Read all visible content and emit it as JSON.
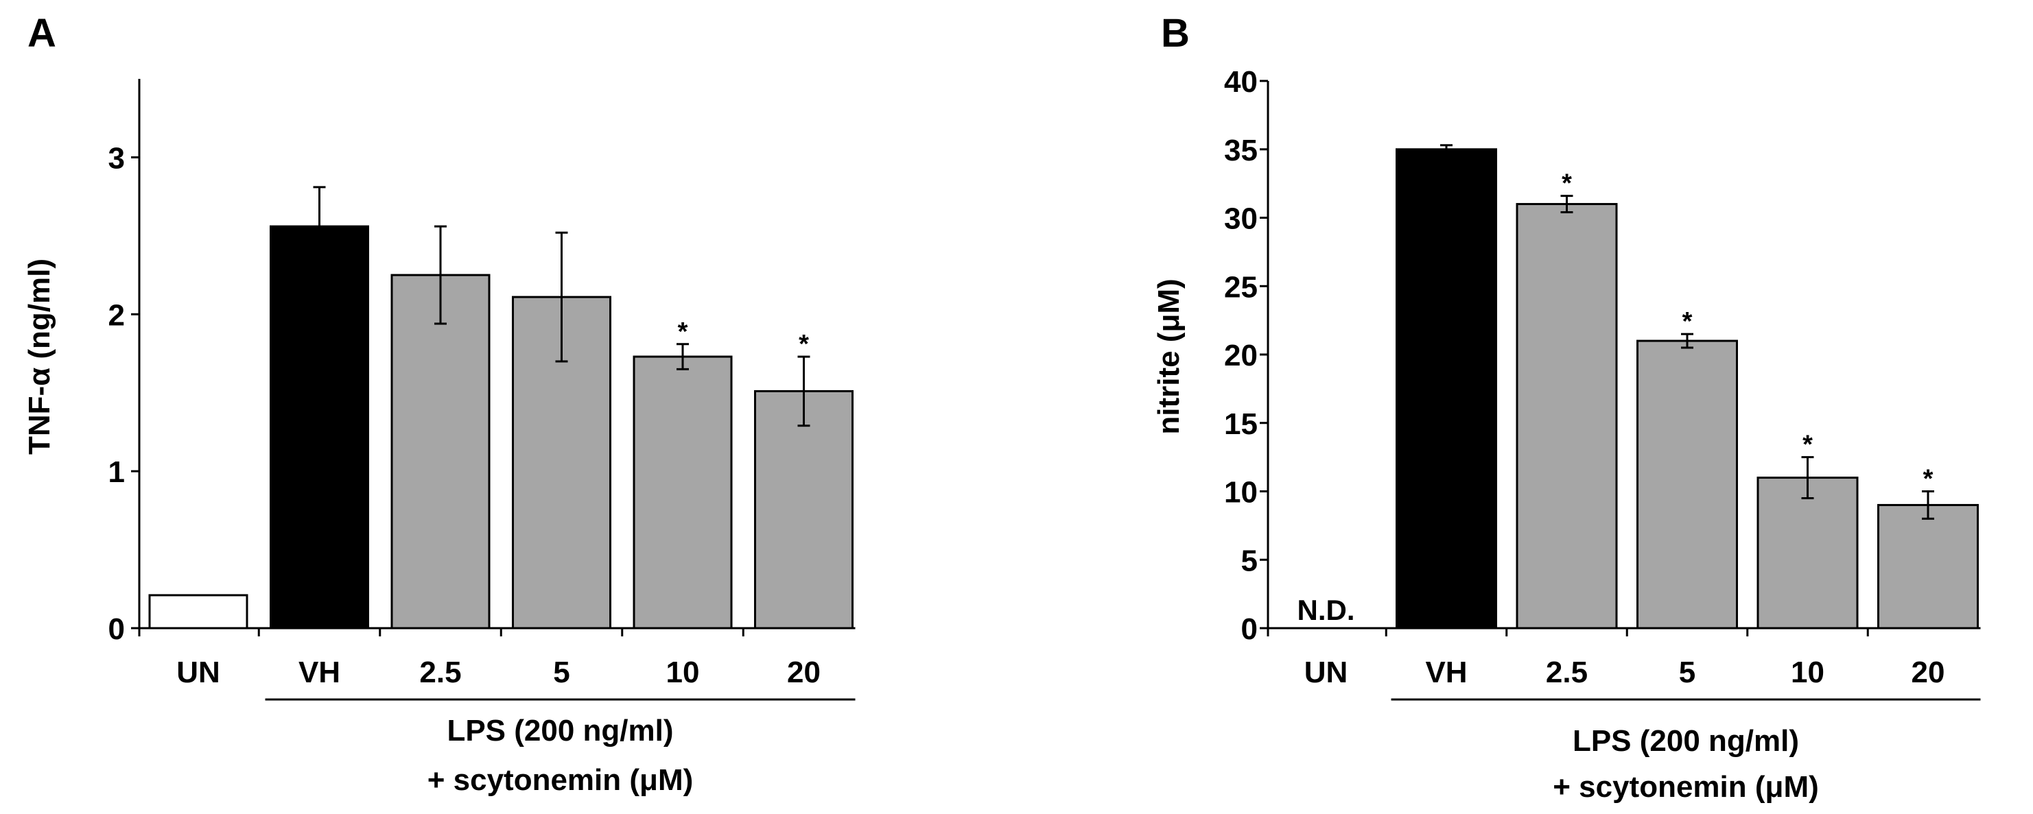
{
  "chart_data": [
    {
      "type": "bar",
      "panel_label": "A",
      "ylabel": "TNF-α (ng/ml)",
      "ylim": [
        0,
        3.5
      ],
      "yticks": [
        0,
        1,
        2,
        3
      ],
      "ytick_labels": [
        "0",
        "1",
        "2",
        "3"
      ],
      "categories": [
        "UN",
        "VH",
        "2.5",
        "5",
        "10",
        "20"
      ],
      "values": [
        0.21,
        2.56,
        2.25,
        2.11,
        1.73,
        1.51
      ],
      "errors": [
        null,
        0.25,
        0.31,
        0.41,
        0.08,
        0.22
      ],
      "bar_colors": [
        "#ffffff",
        "#000000",
        "#a6a6a6",
        "#a6a6a6",
        "#a6a6a6",
        "#a6a6a6"
      ],
      "significance": [
        "",
        "",
        "",
        "",
        "*",
        "*"
      ],
      "group_label_line1": "LPS (200 ng/ml)",
      "group_label_line2": "+ scytonemin (μM)",
      "group_span": [
        1,
        5
      ],
      "no_data_label": ""
    },
    {
      "type": "bar",
      "panel_label": "B",
      "ylabel": "nitrite (μM)",
      "ylim": [
        0,
        40
      ],
      "yticks": [
        0,
        5,
        10,
        15,
        20,
        25,
        30,
        35,
        40
      ],
      "ytick_labels": [
        "0",
        "5",
        "10",
        "15",
        "20",
        "25",
        "30",
        "35",
        "40"
      ],
      "categories": [
        "UN",
        "VH",
        "2.5",
        "5",
        "10",
        "20"
      ],
      "values": [
        0,
        35,
        31,
        21,
        11,
        9
      ],
      "errors": [
        null,
        0.3,
        0.6,
        0.5,
        1.5,
        1.0
      ],
      "bar_colors": [
        "#ffffff",
        "#000000",
        "#a6a6a6",
        "#a6a6a6",
        "#a6a6a6",
        "#a6a6a6"
      ],
      "significance": [
        "",
        "",
        "*",
        "*",
        "*",
        "*"
      ],
      "group_label_line1": "LPS (200 ng/ml)",
      "group_label_line2": "+ scytonemin (μM)",
      "group_span": [
        1,
        5
      ],
      "no_data_label": "N.D."
    }
  ]
}
